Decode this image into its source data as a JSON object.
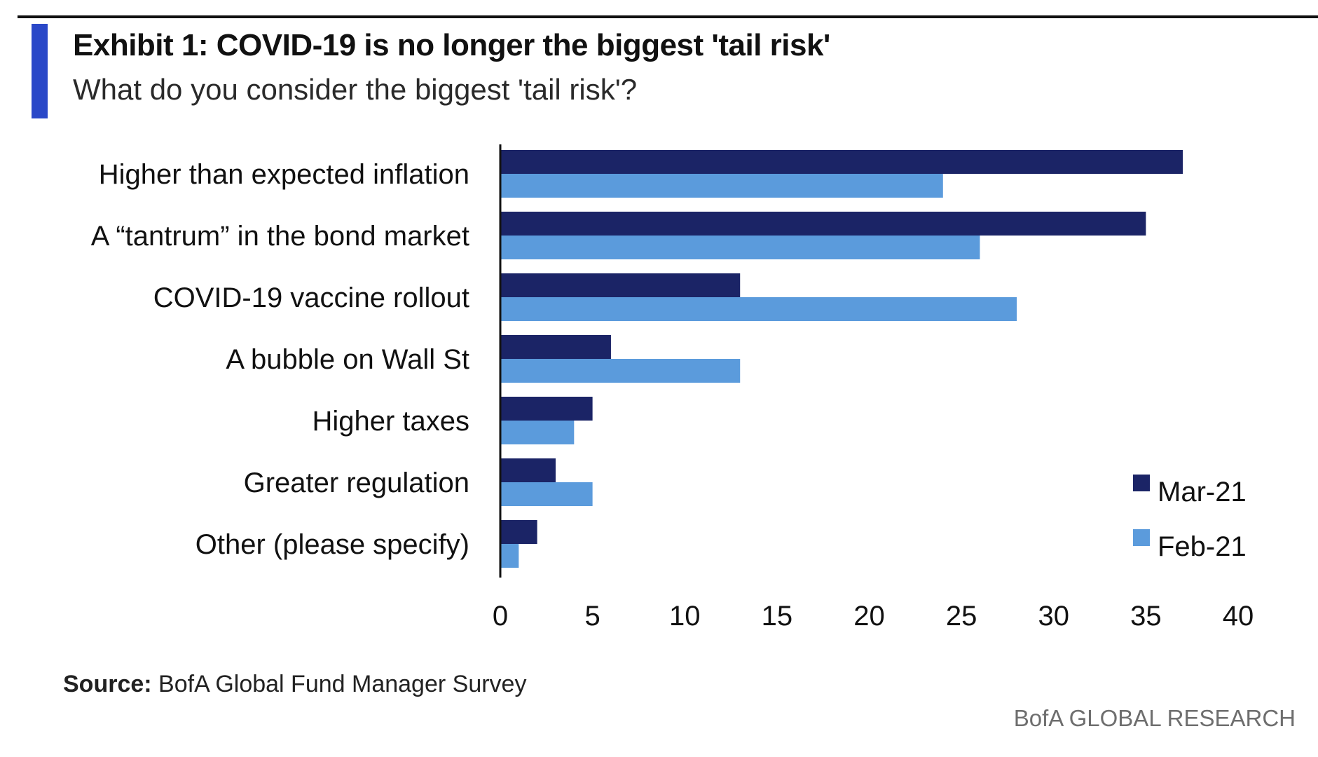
{
  "header": {
    "title": "Exhibit 1: COVID-19 is no longer the biggest 'tail risk'",
    "subtitle": "What do you consider the biggest 'tail risk'?"
  },
  "footer": {
    "source_label": "Source:",
    "source_text": "BofA Global Fund Manager Survey",
    "brand": "BofA GLOBAL RESEARCH"
  },
  "colors": {
    "accent": "#2a48c8",
    "mar21": "#1b2466",
    "feb21": "#5b9bdc"
  },
  "chart_data": {
    "type": "bar",
    "orientation": "horizontal",
    "title": "Exhibit 1: COVID-19 is no longer the biggest 'tail risk'",
    "subtitle": "What do you consider the biggest 'tail risk'?",
    "categories": [
      "Higher than expected inflation",
      "A “tantrum” in the bond market",
      "COVID-19 vaccine rollout",
      "A bubble on Wall St",
      "Higher taxes",
      "Greater regulation",
      "Other (please specify)"
    ],
    "series": [
      {
        "name": "Mar-21",
        "color": "#1b2466",
        "values": [
          37,
          35,
          13,
          6,
          5,
          3,
          2
        ]
      },
      {
        "name": "Feb-21",
        "color": "#5b9bdc",
        "values": [
          24,
          26,
          28,
          13,
          4,
          5,
          1
        ]
      }
    ],
    "xlim": [
      0,
      40
    ],
    "xticks": [
      0,
      5,
      10,
      15,
      20,
      25,
      30,
      35,
      40
    ],
    "xlabel": "",
    "ylabel": "",
    "grid": false,
    "legend_position": "bottom-right"
  }
}
